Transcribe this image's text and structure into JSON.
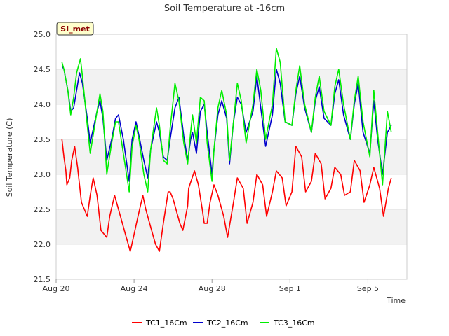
{
  "chart_data": {
    "type": "line",
    "title": "Soil Temperature at -16cm",
    "xlabel": "Time",
    "ylabel": "Soil Temperature (C)",
    "ylim": [
      21.5,
      25.0
    ],
    "y_ticks": [
      "21.5",
      "22.0",
      "22.5",
      "23.0",
      "23.5",
      "24.0",
      "24.5",
      "25.0"
    ],
    "x_range_days": [
      0,
      18
    ],
    "x_ticks": [
      {
        "label": "Aug 20",
        "day": 0
      },
      {
        "label": "Aug 24",
        "day": 4
      },
      {
        "label": "Aug 28",
        "day": 8
      },
      {
        "label": "Sep 1",
        "day": 12
      },
      {
        "label": "Sep 5",
        "day": 16
      }
    ],
    "grid": true,
    "legend_position": "bottom",
    "site_badge": "SI_met",
    "series": [
      {
        "name": "TC1_16Cm",
        "color": "#ff0000",
        "x": [
          0.3,
          0.4,
          0.5,
          0.55,
          0.7,
          0.8,
          0.95,
          1.1,
          1.3,
          1.6,
          1.75,
          1.9,
          2.1,
          2.3,
          2.6,
          2.75,
          3.0,
          3.2,
          3.6,
          3.8,
          3.85,
          4.2,
          4.45,
          4.6,
          4.8,
          5.1,
          5.3,
          5.5,
          5.75,
          5.85,
          6.0,
          6.2,
          6.35,
          6.5,
          6.75,
          6.8,
          7.1,
          7.3,
          7.5,
          7.6,
          7.75,
          7.9,
          8.1,
          8.3,
          8.6,
          8.8,
          9.1,
          9.3,
          9.6,
          9.8,
          10.1,
          10.3,
          10.6,
          10.8,
          11.1,
          11.3,
          11.6,
          11.8,
          12.1,
          12.3,
          12.6,
          12.8,
          13.1,
          13.3,
          13.6,
          13.8,
          14.1,
          14.3,
          14.6,
          14.8,
          15.1,
          15.3,
          15.6,
          15.8,
          16.1,
          16.3,
          16.6,
          16.8,
          17.05,
          17.2
        ],
        "values": [
          23.5,
          23.25,
          23.05,
          22.85,
          22.95,
          23.2,
          23.4,
          23.1,
          22.6,
          22.4,
          22.7,
          22.95,
          22.7,
          22.2,
          22.1,
          22.4,
          22.7,
          22.5,
          22.1,
          21.9,
          21.95,
          22.4,
          22.7,
          22.5,
          22.3,
          22.0,
          21.9,
          22.3,
          22.75,
          22.75,
          22.65,
          22.45,
          22.3,
          22.2,
          22.55,
          22.8,
          23.05,
          22.85,
          22.5,
          22.3,
          22.3,
          22.6,
          22.85,
          22.7,
          22.4,
          22.1,
          22.6,
          22.95,
          22.8,
          22.3,
          22.6,
          23.0,
          22.85,
          22.4,
          22.75,
          23.05,
          22.95,
          22.55,
          22.75,
          23.4,
          23.25,
          22.75,
          22.9,
          23.3,
          23.15,
          22.65,
          22.8,
          23.1,
          23.0,
          22.7,
          22.75,
          23.2,
          23.05,
          22.6,
          22.85,
          23.1,
          22.8,
          22.4,
          22.8,
          22.95
        ]
      },
      {
        "name": "TC2_16Cm",
        "color": "#0000cc",
        "x": [
          0.3,
          0.4,
          0.6,
          0.75,
          0.9,
          1.05,
          1.2,
          1.35,
          1.6,
          1.75,
          2.1,
          2.25,
          2.4,
          2.6,
          2.85,
          3.05,
          3.2,
          3.45,
          3.75,
          3.9,
          4.1,
          4.25,
          4.5,
          4.7,
          4.85,
          5.15,
          5.3,
          5.5,
          5.7,
          5.85,
          6.1,
          6.3,
          6.55,
          6.75,
          6.9,
          7.0,
          7.2,
          7.4,
          7.6,
          7.75,
          8.0,
          8.1,
          8.3,
          8.5,
          8.75,
          8.9,
          9.1,
          9.3,
          9.5,
          9.75,
          10.1,
          10.3,
          10.5,
          10.75,
          11.1,
          11.3,
          11.5,
          11.75,
          12.1,
          12.3,
          12.5,
          12.75,
          13.1,
          13.3,
          13.5,
          13.75,
          14.1,
          14.3,
          14.5,
          14.75,
          15.1,
          15.3,
          15.5,
          15.75,
          16.1,
          16.3,
          16.5,
          16.75,
          17.0,
          17.2
        ],
        "values": [
          24.55,
          24.5,
          24.2,
          23.9,
          23.95,
          24.2,
          24.45,
          24.3,
          23.8,
          23.45,
          23.9,
          24.05,
          23.8,
          23.2,
          23.5,
          23.8,
          23.85,
          23.5,
          22.9,
          23.5,
          23.75,
          23.55,
          23.2,
          22.95,
          23.35,
          23.75,
          23.6,
          23.25,
          23.2,
          23.5,
          23.95,
          24.1,
          23.55,
          23.2,
          23.5,
          23.6,
          23.3,
          23.9,
          24.0,
          23.6,
          23.0,
          23.35,
          23.85,
          24.05,
          23.8,
          23.15,
          23.75,
          24.1,
          24.0,
          23.6,
          23.9,
          24.4,
          23.95,
          23.4,
          23.85,
          24.5,
          24.3,
          23.75,
          23.7,
          24.15,
          24.4,
          23.95,
          23.6,
          24.05,
          24.25,
          23.8,
          23.7,
          24.15,
          24.35,
          23.85,
          23.5,
          24.0,
          24.3,
          23.6,
          23.3,
          24.05,
          23.5,
          23.0,
          23.6,
          23.7
        ]
      },
      {
        "name": "TC3_16Cm",
        "color": "#00ee00",
        "x": [
          0.3,
          0.4,
          0.6,
          0.75,
          0.9,
          1.05,
          1.25,
          1.35,
          1.6,
          1.75,
          2.1,
          2.25,
          2.4,
          2.6,
          2.85,
          3.05,
          3.2,
          3.45,
          3.75,
          3.9,
          4.1,
          4.25,
          4.5,
          4.7,
          4.85,
          5.15,
          5.3,
          5.5,
          5.7,
          5.85,
          6.1,
          6.3,
          6.55,
          6.75,
          6.9,
          7.0,
          7.2,
          7.4,
          7.6,
          7.75,
          8.0,
          8.1,
          8.3,
          8.5,
          8.75,
          8.9,
          9.1,
          9.3,
          9.5,
          9.75,
          10.1,
          10.3,
          10.5,
          10.75,
          11.1,
          11.3,
          11.5,
          11.75,
          12.1,
          12.3,
          12.5,
          12.75,
          13.1,
          13.3,
          13.5,
          13.75,
          14.1,
          14.3,
          14.5,
          14.75,
          15.1,
          15.3,
          15.5,
          15.75,
          16.1,
          16.3,
          16.5,
          16.75,
          17.0,
          17.2
        ],
        "values": [
          24.6,
          24.5,
          24.2,
          23.85,
          24.1,
          24.45,
          24.65,
          24.4,
          23.7,
          23.3,
          23.9,
          24.15,
          23.9,
          23.0,
          23.45,
          23.75,
          23.75,
          23.3,
          22.75,
          23.4,
          23.7,
          23.5,
          23.0,
          22.75,
          23.35,
          23.95,
          23.7,
          23.2,
          23.15,
          23.65,
          24.3,
          24.05,
          23.45,
          23.15,
          23.6,
          23.85,
          23.45,
          24.1,
          24.05,
          23.45,
          22.9,
          23.35,
          23.95,
          24.2,
          23.85,
          23.2,
          23.75,
          24.3,
          24.05,
          23.45,
          24.0,
          24.5,
          24.2,
          23.5,
          24.0,
          24.8,
          24.6,
          23.75,
          23.7,
          24.2,
          24.55,
          24.0,
          23.6,
          24.1,
          24.4,
          23.9,
          23.7,
          24.25,
          24.5,
          24.0,
          23.5,
          24.05,
          24.4,
          23.75,
          23.25,
          24.2,
          23.6,
          22.85,
          23.9,
          23.6
        ]
      }
    ]
  }
}
